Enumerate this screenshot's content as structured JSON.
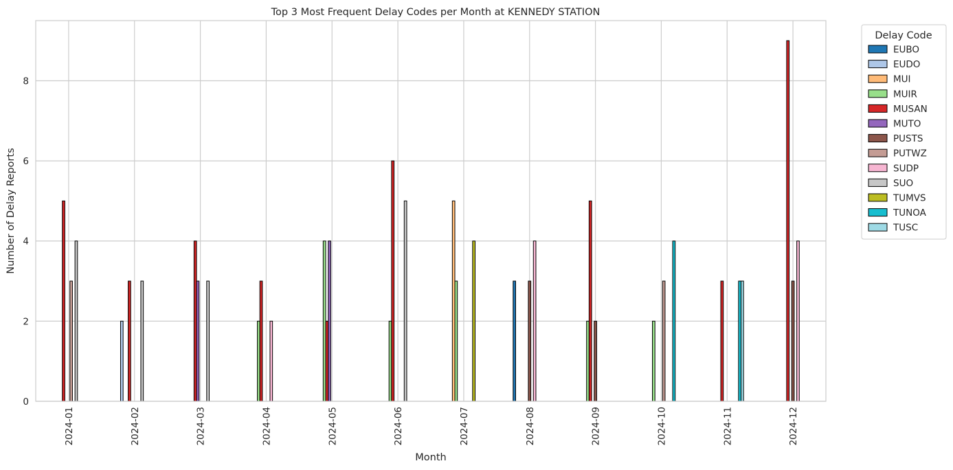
{
  "chart_data": {
    "type": "bar",
    "title": "Top 3 Most Frequent Delay Codes per Month at KENNEDY STATION",
    "xlabel": "Month",
    "ylabel": "Number of Delay Reports",
    "ylim": [
      0,
      9.5
    ],
    "yticks": [
      0,
      2,
      4,
      6,
      8
    ],
    "grid": true,
    "legend_title": "Delay Code",
    "legend_position": "outside-top-right",
    "categories": [
      "2024-01",
      "2024-02",
      "2024-03",
      "2024-04",
      "2024-05",
      "2024-06",
      "2024-07",
      "2024-08",
      "2024-09",
      "2024-10",
      "2024-11",
      "2024-12"
    ],
    "series": [
      {
        "name": "EUBO",
        "color": "#1f77b4",
        "values": [
          0,
          0,
          0,
          0,
          0,
          0,
          0,
          3,
          0,
          0,
          0,
          0
        ]
      },
      {
        "name": "EUDO",
        "color": "#aec7e8",
        "values": [
          0,
          2,
          0,
          0,
          0,
          0,
          0,
          0,
          0,
          0,
          0,
          0
        ]
      },
      {
        "name": "MUI",
        "color": "#ffbb78",
        "values": [
          0,
          0,
          0,
          0,
          0,
          0,
          5,
          0,
          0,
          0,
          0,
          0
        ]
      },
      {
        "name": "MUIR",
        "color": "#98df8a",
        "values": [
          0,
          0,
          0,
          2,
          4,
          2,
          3,
          0,
          2,
          2,
          0,
          0
        ]
      },
      {
        "name": "MUSAN",
        "color": "#d62728",
        "values": [
          5,
          3,
          4,
          3,
          2,
          6,
          0,
          0,
          5,
          0,
          3,
          9
        ]
      },
      {
        "name": "MUTO",
        "color": "#9467bd",
        "values": [
          0,
          0,
          3,
          0,
          4,
          0,
          0,
          0,
          0,
          0,
          0,
          0
        ]
      },
      {
        "name": "PUSTS",
        "color": "#8c564b",
        "values": [
          0,
          0,
          0,
          0,
          0,
          0,
          0,
          3,
          2,
          0,
          0,
          3
        ]
      },
      {
        "name": "PUTWZ",
        "color": "#c49c94",
        "values": [
          3,
          0,
          0,
          0,
          0,
          0,
          0,
          0,
          0,
          3,
          0,
          0
        ]
      },
      {
        "name": "SUDP",
        "color": "#f7b6d2",
        "values": [
          0,
          0,
          0,
          2,
          0,
          0,
          0,
          4,
          0,
          0,
          0,
          4
        ]
      },
      {
        "name": "SUO",
        "color": "#c7c7c7",
        "values": [
          4,
          3,
          3,
          0,
          0,
          5,
          0,
          0,
          0,
          0,
          0,
          0
        ]
      },
      {
        "name": "TUMVS",
        "color": "#bcbd22",
        "values": [
          0,
          0,
          0,
          0,
          0,
          0,
          4,
          0,
          0,
          0,
          0,
          0
        ]
      },
      {
        "name": "TUNOA",
        "color": "#17becf",
        "values": [
          0,
          0,
          0,
          0,
          0,
          0,
          0,
          0,
          0,
          4,
          3,
          0
        ]
      },
      {
        "name": "TUSC",
        "color": "#9edae5",
        "values": [
          0,
          0,
          0,
          0,
          0,
          0,
          0,
          0,
          0,
          0,
          3,
          0
        ]
      }
    ]
  }
}
